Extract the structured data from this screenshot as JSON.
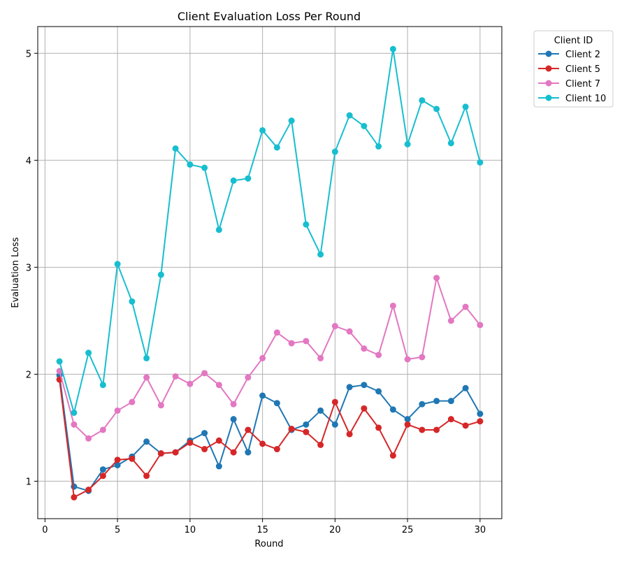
{
  "chart_data": {
    "type": "line",
    "title": "Client Evaluation Loss Per Round",
    "xlabel": "Round",
    "ylabel": "Evaluation Loss",
    "xlim": [
      -0.5,
      31.5
    ],
    "ylim": [
      0.65,
      5.25
    ],
    "xticks": [
      0,
      5,
      10,
      15,
      20,
      25,
      30
    ],
    "yticks": [
      1,
      2,
      3,
      4,
      5
    ],
    "grid": true,
    "legend": {
      "title": "Client ID",
      "placement": "outside-top-right"
    },
    "x": [
      1,
      2,
      3,
      4,
      5,
      6,
      7,
      8,
      9,
      10,
      11,
      12,
      13,
      14,
      15,
      16,
      17,
      18,
      19,
      20,
      21,
      22,
      23,
      24,
      25,
      26,
      27,
      28,
      29,
      30
    ],
    "series": [
      {
        "name": "Client 2",
        "color": "#1f77b4",
        "values": [
          1.99,
          0.95,
          0.91,
          1.11,
          1.15,
          1.23,
          1.37,
          1.26,
          1.27,
          1.38,
          1.45,
          1.14,
          1.58,
          1.27,
          1.8,
          1.73,
          1.48,
          1.53,
          1.66,
          1.53,
          1.88,
          1.9,
          1.84,
          1.67,
          1.58,
          1.72,
          1.75,
          1.75,
          1.87,
          1.63
        ]
      },
      {
        "name": "Client 5",
        "color": "#d62728",
        "values": [
          1.95,
          0.85,
          0.92,
          1.05,
          1.2,
          1.21,
          1.05,
          1.26,
          1.27,
          1.36,
          1.3,
          1.38,
          1.27,
          1.48,
          1.35,
          1.3,
          1.49,
          1.46,
          1.34,
          1.74,
          1.44,
          1.68,
          1.5,
          1.24,
          1.53,
          1.48,
          1.48,
          1.58,
          1.52,
          1.56
        ]
      },
      {
        "name": "Client 7",
        "color": "#e377c2",
        "values": [
          2.03,
          1.53,
          1.4,
          1.48,
          1.66,
          1.74,
          1.97,
          1.71,
          1.98,
          1.91,
          2.01,
          1.9,
          1.72,
          1.97,
          2.15,
          2.39,
          2.29,
          2.31,
          2.15,
          2.45,
          2.4,
          2.24,
          2.18,
          2.64,
          2.14,
          2.16,
          2.9,
          2.5,
          2.63,
          2.46
        ]
      },
      {
        "name": "Client 10",
        "color": "#17becf",
        "values": [
          2.12,
          1.64,
          2.2,
          1.9,
          3.03,
          2.68,
          2.15,
          2.93,
          4.11,
          3.96,
          3.93,
          3.35,
          3.81,
          3.83,
          4.28,
          4.12,
          4.37,
          3.4,
          3.12,
          4.08,
          4.42,
          4.32,
          4.13,
          5.04,
          4.15,
          4.56,
          4.48,
          4.16,
          4.5,
          3.98
        ]
      }
    ]
  }
}
